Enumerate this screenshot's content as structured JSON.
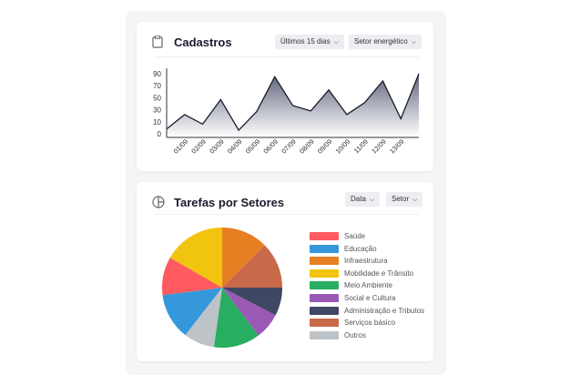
{
  "cadastros": {
    "title": "Cadastros",
    "icon": "clipboard-icon",
    "filter1": "Últimos 15 dias",
    "filter2": "Setor energético"
  },
  "tarefas": {
    "title": "Tarefas por Setores",
    "icon": "pie-chart-icon",
    "filter1": "Data",
    "filter2": "Setor"
  },
  "chart_data": [
    {
      "type": "area",
      "title": "Cadastros",
      "yticks": [
        0,
        10,
        30,
        50,
        70,
        90
      ],
      "x": [
        "",
        "01/09",
        "02/09",
        "03/09",
        "04/09",
        "05/09",
        "06/09",
        "07/09",
        "08/09",
        "09/09",
        "10/09",
        "11/09",
        "12/09",
        "13/09",
        ""
      ],
      "values": [
        4,
        22,
        8,
        47,
        3,
        27,
        85,
        37,
        28,
        63,
        22,
        42,
        78,
        15,
        90
      ],
      "line_color": "#1a1a2e",
      "fill_gradient": [
        "#5a5f78",
        "#ffffff"
      ]
    },
    {
      "type": "pie",
      "title": "Tarefas por Setores",
      "legend": "right",
      "slices": [
        {
          "name": "Infraestrutura",
          "value": 12.5,
          "color": "#e67e22"
        },
        {
          "name": "Serviços básico",
          "value": 12.5,
          "color": "#c8694a"
        },
        {
          "name": "Administração e Tributos",
          "value": 7.6,
          "color": "#3f4763"
        },
        {
          "name": "Social e Cultura",
          "value": 7.1,
          "color": "#9b59b6"
        },
        {
          "name": "Meio Ambiente",
          "value": 12.5,
          "color": "#27ae60"
        },
        {
          "name": "Outros",
          "value": 8.3,
          "color": "#bdc3c7"
        },
        {
          "name": "Educação",
          "value": 12.5,
          "color": "#3498db"
        },
        {
          "name": "Saúde",
          "value": 10.3,
          "color": "#ff5a5f"
        },
        {
          "name": "Mobilidade e Trânsito",
          "value": 16.7,
          "color": "#f1c40f"
        }
      ],
      "legend_order": [
        "Saúde",
        "Educação",
        "Infraestrutura",
        "Mobilidade e Trânsito",
        "Meio Ambiente",
        "Social e Cultura",
        "Administração e Tributos",
        "Serviços básico",
        "Outros"
      ]
    }
  ]
}
